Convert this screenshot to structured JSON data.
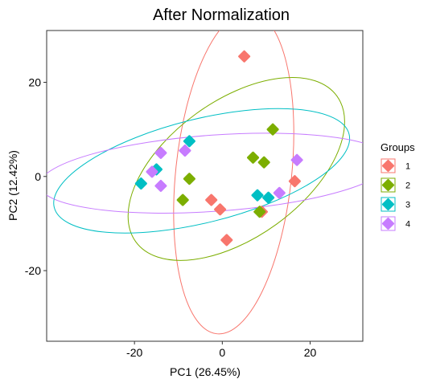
{
  "chart_data": {
    "type": "scatter",
    "title": "After Normalization",
    "xlabel": "PC1 (26.45%)",
    "ylabel": "PC2 (12.42%)",
    "xlim": [
      -40,
      32
    ],
    "ylim": [
      -35,
      31
    ],
    "xticks": [
      -20,
      0,
      20
    ],
    "yticks": [
      -20,
      0,
      20
    ],
    "xtick_labels": [
      "-20",
      "0",
      "20"
    ],
    "ytick_labels": [
      "-20",
      "0",
      "20"
    ],
    "grid": false,
    "legend": {
      "title": "Groups",
      "position": "right"
    },
    "series": [
      {
        "name": "1",
        "color": "#F8766D",
        "points": [
          [
            5,
            25.5
          ],
          [
            16.5,
            -1
          ],
          [
            -2.5,
            -5
          ],
          [
            -0.5,
            -7
          ],
          [
            9,
            -7.5
          ],
          [
            1,
            -13.5
          ]
        ],
        "ellipse": {
          "cx": 2.6,
          "cy": 0.8,
          "rx": 13.2,
          "ry": 34.4,
          "rotate": 6
        }
      },
      {
        "name": "2",
        "color": "#7CAE00",
        "points": [
          [
            11.5,
            10
          ],
          [
            7,
            4
          ],
          [
            9.5,
            3
          ],
          [
            -7.5,
            -0.5
          ],
          [
            -9,
            -5
          ],
          [
            8.5,
            -7.5
          ]
        ],
        "ellipse": {
          "cx": 3.2,
          "cy": 1.6,
          "rx": 28.3,
          "ry": 14.5,
          "rotate": -36
        }
      },
      {
        "name": "3",
        "color": "#00BFC4",
        "points": [
          [
            -7.5,
            7.5
          ],
          [
            -15,
            1.5
          ],
          [
            -18.5,
            -1.5
          ],
          [
            8,
            -4
          ],
          [
            10.5,
            -4.5
          ]
        ],
        "ellipse": {
          "cx": -4.7,
          "cy": 1.2,
          "rx": 34.6,
          "ry": 11.0,
          "rotate": -14
        }
      },
      {
        "name": "4",
        "color": "#C77CFF",
        "points": [
          [
            -14,
            5
          ],
          [
            -8.5,
            5.5
          ],
          [
            -16,
            1
          ],
          [
            -14,
            -2
          ],
          [
            17,
            3.5
          ],
          [
            13,
            -3.5
          ]
        ],
        "ellipse": {
          "cx": -1.7,
          "cy": 0.7,
          "rx": 40.0,
          "ry": 8.1,
          "rotate": -4
        }
      }
    ]
  }
}
